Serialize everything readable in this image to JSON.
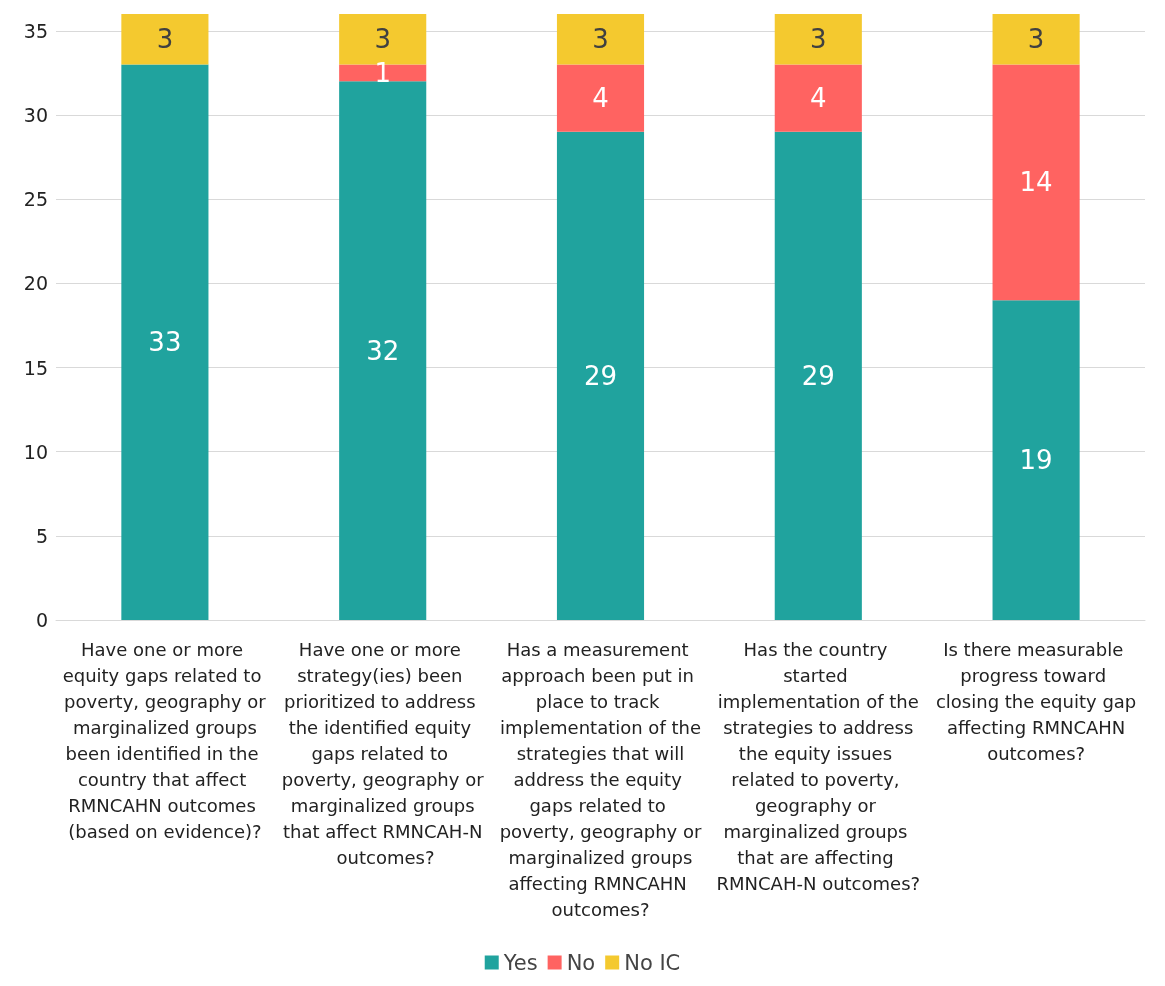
{
  "chart_data": {
    "type": "bar",
    "stacked": true,
    "categories": [
      "Have one or more equity gaps related to poverty, geography or marginalized groups been identified in the country that affect RMNCAHN outcomes (based on evidence)?",
      "Have one or more strategy(ies) been prioritized to address the identified equity gaps related to poverty, geography or marginalized groups that affect RMNCAH-N outcomes?",
      "Has a measurement approach been put in place to track implementation of the strategies that will address the equity gaps related to poverty, geography or marginalized groups affecting RMNCAHN outcomes?",
      "Has the country started implementation of the strategies to address the equity issues related to poverty, geography or marginalized groups that are affecting RMNCAH-N outcomes?",
      "Is there measurable progress toward closing the equity gap affecting RMNCAHN outcomes?"
    ],
    "series": [
      {
        "name": "Yes",
        "color": "#20a39e",
        "values": [
          33,
          32,
          29,
          29,
          19
        ]
      },
      {
        "name": "No",
        "color": "#ff6361",
        "values": [
          null,
          1,
          4,
          4,
          14
        ]
      },
      {
        "name": "No IC",
        "color": "#f4c92f",
        "values": [
          3,
          3,
          3,
          3,
          3
        ]
      }
    ],
    "ylim": [
      0,
      36
    ],
    "yticks": [
      0,
      5,
      10,
      15,
      20,
      25,
      30,
      35
    ],
    "grid": "y",
    "legend": "bottom",
    "data_labels": true
  }
}
